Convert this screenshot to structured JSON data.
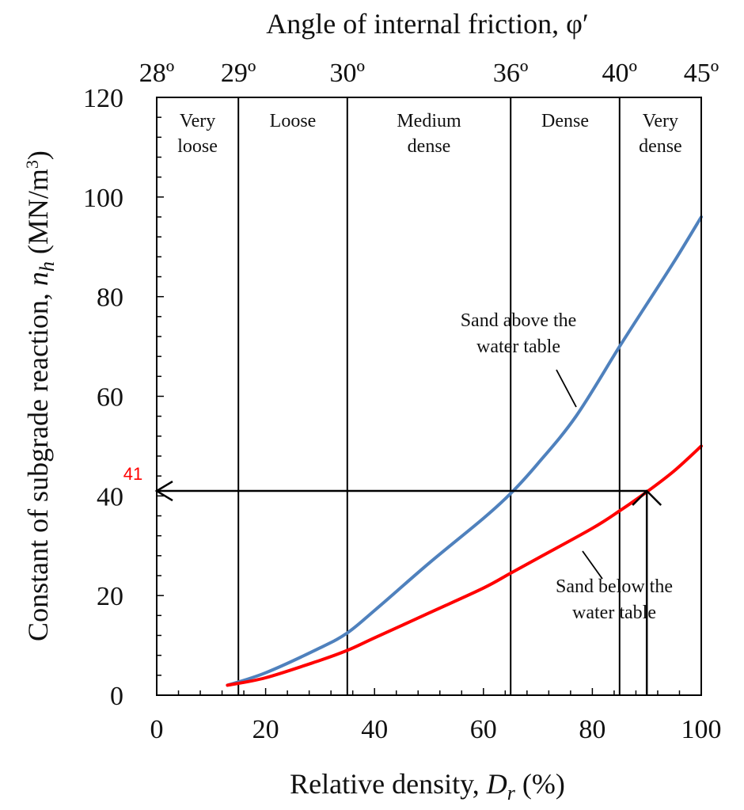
{
  "chart_data": {
    "type": "line",
    "top_title": "Angle of internal friction, φ′",
    "xlabel_text": "Relative density, ",
    "xlabel_symbol": "D",
    "xlabel_sub": "r",
    "xlabel_unit": " (%)",
    "ylabel_text": "Constant of subgrade reaction, ",
    "ylabel_symbol": "n",
    "ylabel_sub": "h",
    "ylabel_unit": " (MN/m",
    "ylabel_exp": "3",
    "ylabel_close": ")",
    "xlim": [
      0,
      100
    ],
    "ylim": [
      0,
      120
    ],
    "x_ticks": [
      0,
      20,
      40,
      60,
      80,
      100
    ],
    "y_ticks": [
      0,
      20,
      40,
      60,
      80,
      100,
      120
    ],
    "top_ticks": [
      {
        "value": 0,
        "label": "28º"
      },
      {
        "value": 15,
        "label": "29º"
      },
      {
        "value": 35,
        "label": "30º"
      },
      {
        "value": 65,
        "label": "36º"
      },
      {
        "value": 85,
        "label": "40º"
      },
      {
        "value": 100,
        "label": "45º"
      }
    ],
    "zone_boundaries": [
      15,
      35,
      65,
      85
    ],
    "zones": [
      {
        "x": 7.5,
        "lines": [
          "Very",
          "loose"
        ]
      },
      {
        "x": 25,
        "lines": [
          "Loose"
        ]
      },
      {
        "x": 50,
        "lines": [
          "Medium",
          "dense"
        ]
      },
      {
        "x": 75,
        "lines": [
          "Dense"
        ]
      },
      {
        "x": 92.5,
        "lines": [
          "Very",
          "dense"
        ]
      }
    ],
    "series": [
      {
        "name": "Sand above the water table",
        "color": "#4f81bd",
        "x": [
          13,
          20,
          30,
          35,
          40,
          50,
          60,
          65,
          70,
          77,
          85,
          90,
          95,
          100
        ],
        "y": [
          2,
          4.5,
          9.5,
          12.5,
          17,
          26.5,
          35.5,
          40.5,
          46.5,
          56,
          70,
          78.5,
          87,
          96
        ]
      },
      {
        "name": "Sand below the water table",
        "color": "#ff0000",
        "x": [
          13,
          20,
          30,
          35,
          40,
          50,
          60,
          65,
          70,
          80,
          85,
          90,
          95,
          100
        ],
        "y": [
          2,
          3.5,
          7,
          9,
          11.5,
          16.5,
          21.5,
          24.5,
          27.5,
          33.5,
          37,
          40.8,
          45,
          50
        ]
      }
    ],
    "annotations": [
      {
        "lines": [
          "Sand above the",
          "water table"
        ],
        "series": 0
      },
      {
        "lines": [
          "Sand below the",
          "water table"
        ],
        "series": 1
      }
    ],
    "reading": {
      "label": "41",
      "label_color": "#ff0000",
      "x": 90,
      "y": 41
    }
  }
}
